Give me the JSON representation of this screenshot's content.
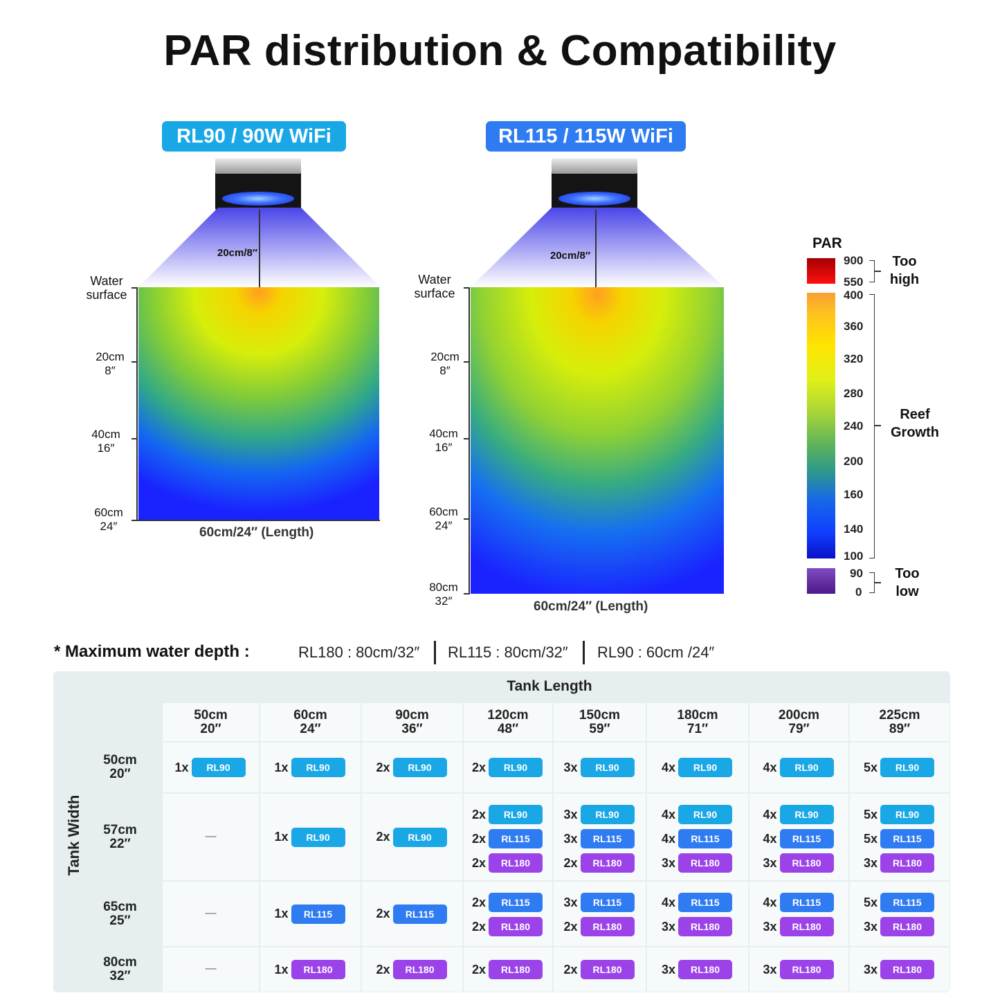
{
  "title": "PAR distribution & Compatibility",
  "colors": {
    "rl90": "#1aa7e6",
    "rl115": "#2f7cf2",
    "rl180": "#9b43e8",
    "table_bg": "#e7eeef",
    "cell_bg": "#f6fafa"
  },
  "left_diagram": {
    "badge": "RL90 / 90W WiFi",
    "distance": "20cm/8″",
    "water_surface": "Water surface",
    "depth_labels": [
      "20cm\n8″",
      "40cm\n16″",
      "60cm\n24″"
    ],
    "length_caption": "60cm/24″  (Length)"
  },
  "right_diagram": {
    "badge": "RL115 / 115W WiFi",
    "distance": "20cm/8″",
    "water_surface": "Water surface",
    "depth_labels": [
      "20cm\n8″",
      "40cm\n16″",
      "60cm\n24″",
      "80cm\n32″"
    ],
    "length_caption": "60cm/24″  (Length)"
  },
  "par_legend": {
    "title": "PAR",
    "high_values": [
      "900",
      "550"
    ],
    "high_label": "Too high",
    "scale_values": [
      "400",
      "360",
      "320",
      "280",
      "240",
      "200",
      "160",
      "140",
      "100"
    ],
    "mid_label": "Reef Growth",
    "low_values": [
      "90",
      "0"
    ],
    "low_label": "Too low"
  },
  "max_depth": {
    "label": "* Maximum water depth :",
    "items": [
      "RL180 : 80cm/32″",
      "RL115 : 80cm/32″",
      "RL90 : 60cm /24″"
    ]
  },
  "table": {
    "tank_length_label": "Tank Length",
    "tank_width_label": "Tank Width",
    "columns": [
      "50cm 20″",
      "60cm 24″",
      "90cm 36″",
      "120cm 48″",
      "150cm 59″",
      "180cm 71″",
      "200cm 79″",
      "225cm 89″"
    ],
    "rows": [
      {
        "label": "50cm 20″",
        "cells": [
          [
            [
              "1x",
              "RL90"
            ]
          ],
          [
            [
              "1x",
              "RL90"
            ]
          ],
          [
            [
              "2x",
              "RL90"
            ]
          ],
          [
            [
              "2x",
              "RL90"
            ]
          ],
          [
            [
              "3x",
              "RL90"
            ]
          ],
          [
            [
              "4x",
              "RL90"
            ]
          ],
          [
            [
              "4x",
              "RL90"
            ]
          ],
          [
            [
              "5x",
              "RL90"
            ]
          ]
        ]
      },
      {
        "label": "57cm 22″",
        "cells": [
          [],
          [
            [
              "1x",
              "RL90"
            ]
          ],
          [
            [
              "2x",
              "RL90"
            ]
          ],
          [
            [
              "2x",
              "RL90"
            ],
            [
              "2x",
              "RL115"
            ],
            [
              "2x",
              "RL180"
            ]
          ],
          [
            [
              "3x",
              "RL90"
            ],
            [
              "3x",
              "RL115"
            ],
            [
              "2x",
              "RL180"
            ]
          ],
          [
            [
              "4x",
              "RL90"
            ],
            [
              "4x",
              "RL115"
            ],
            [
              "3x",
              "RL180"
            ]
          ],
          [
            [
              "4x",
              "RL90"
            ],
            [
              "4x",
              "RL115"
            ],
            [
              "3x",
              "RL180"
            ]
          ],
          [
            [
              "5x",
              "RL90"
            ],
            [
              "5x",
              "RL115"
            ],
            [
              "3x",
              "RL180"
            ]
          ]
        ]
      },
      {
        "label": "65cm 25″",
        "cells": [
          [],
          [
            [
              "1x",
              "RL115"
            ]
          ],
          [
            [
              "2x",
              "RL115"
            ]
          ],
          [
            [
              "2x",
              "RL115"
            ],
            [
              "2x",
              "RL180"
            ]
          ],
          [
            [
              "3x",
              "RL115"
            ],
            [
              "2x",
              "RL180"
            ]
          ],
          [
            [
              "4x",
              "RL115"
            ],
            [
              "3x",
              "RL180"
            ]
          ],
          [
            [
              "4x",
              "RL115"
            ],
            [
              "3x",
              "RL180"
            ]
          ],
          [
            [
              "5x",
              "RL115"
            ],
            [
              "3x",
              "RL180"
            ]
          ]
        ]
      },
      {
        "label": "80cm 32″",
        "cells": [
          [],
          [
            [
              "1x",
              "RL180"
            ]
          ],
          [
            [
              "2x",
              "RL180"
            ]
          ],
          [
            [
              "2x",
              "RL180"
            ]
          ],
          [
            [
              "2x",
              "RL180"
            ]
          ],
          [
            [
              "3x",
              "RL180"
            ]
          ],
          [
            [
              "3x",
              "RL180"
            ]
          ],
          [
            [
              "3x",
              "RL180"
            ]
          ]
        ]
      }
    ],
    "empty_mark": "—"
  }
}
